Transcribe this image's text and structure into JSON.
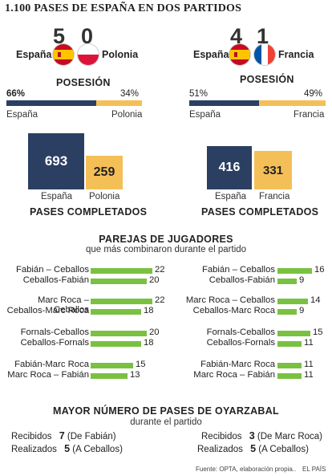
{
  "title": "1.100 PASES DE ESPAÑA EN DOS PARTIDOS",
  "colors": {
    "spain": "#2b3f63",
    "rival": "#f5bf58",
    "pairs": "#7ac142"
  },
  "matches": [
    {
      "home": "España",
      "away": "Polonia",
      "home_score": "5",
      "away_score": "0",
      "possession_label": "POSESIÓN",
      "home_possession": "66%",
      "away_possession": "34%",
      "passes_home": "693",
      "passes_away": "259",
      "passes_label": "PASES COMPLETADOS"
    },
    {
      "home": "España",
      "away": "Francia",
      "home_score": "4",
      "away_score": "1",
      "possession_label": "POSESIÓN",
      "home_possession": "51%",
      "away_possession": "49%",
      "passes_home": "416",
      "passes_away": "331",
      "passes_label": "PASES COMPLETADOS"
    }
  ],
  "pairs_title": "PAREJAS DE JUGADORES",
  "pairs_subtitle": "que más combinaron durante el partido",
  "oyarzabal": {
    "title": "MAYOR NÚMERO DE PASES DE OYARZABAL",
    "subtitle": "durante el partido",
    "received_label": "Recibidos",
    "made_label": "Realizados",
    "left": {
      "received": "7",
      "received_note": "(De Fabián)",
      "made": "5",
      "made_note": "(A Ceballos)"
    },
    "right": {
      "received": "3",
      "received_note": "(De Marc Roca)",
      "made": "5",
      "made_note": "(A Ceballos)"
    }
  },
  "source": "Fuente: OPTA, elaboración propia..",
  "brand": "EL PAÍS",
  "chart_data": [
    {
      "type": "bar",
      "title": "POSESIÓN",
      "categories": [
        "España",
        "Polonia"
      ],
      "values": [
        66,
        34
      ]
    },
    {
      "type": "bar",
      "title": "POSESIÓN",
      "categories": [
        "España",
        "Francia"
      ],
      "values": [
        51,
        49
      ]
    },
    {
      "type": "bar",
      "title": "PASES COMPLETADOS",
      "categories": [
        "España",
        "Polonia"
      ],
      "values": [
        693,
        259
      ]
    },
    {
      "type": "bar",
      "title": "PASES COMPLETADOS",
      "categories": [
        "España",
        "Francia"
      ],
      "values": [
        416,
        331
      ]
    },
    {
      "type": "bar",
      "title": "PAREJAS DE JUGADORES",
      "categories": [
        "Fabián – Ceballos",
        "Ceballos-Fabián",
        "Marc Roca – Ceballos",
        "Ceballos-Marc Roca",
        "Fornals-Ceballos",
        "Ceballos-Fornals",
        "Fabián-Marc Roca",
        "Marc Roca – Fabián"
      ],
      "values": [
        22,
        20,
        22,
        18,
        20,
        18,
        15,
        13
      ]
    },
    {
      "type": "bar",
      "title": "PAREJAS DE JUGADORES",
      "categories": [
        "Fabián – Ceballos",
        "Ceballos-Fabián",
        "Marc Roca – Ceballos",
        "Ceballos-Marc Roca",
        "Fornals-Ceballos",
        "Ceballos-Fornals",
        "Fabián-Marc Roca",
        "Marc Roca – Fabián"
      ],
      "values": [
        16,
        9,
        14,
        9,
        15,
        11,
        11,
        11
      ]
    }
  ]
}
